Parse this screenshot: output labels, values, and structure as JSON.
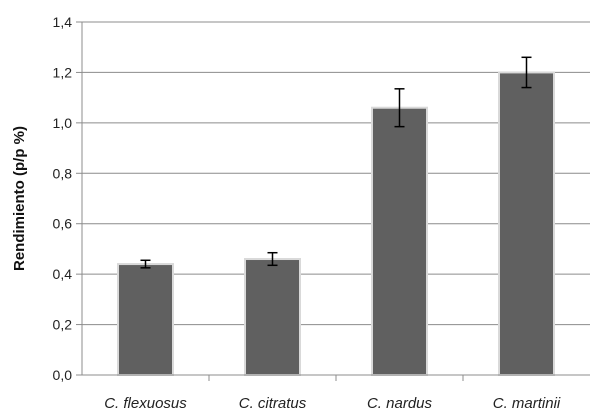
{
  "chart_data": {
    "type": "bar",
    "categories": [
      "C. flexuosus",
      "C. citratus",
      "C. nardus",
      "C. martinii"
    ],
    "values": [
      0.44,
      0.46,
      1.06,
      1.2
    ],
    "error": [
      0.015,
      0.025,
      0.075,
      0.06
    ],
    "ylabel": "Rendimiento (p/p %)",
    "xlabel": "",
    "ylim": [
      0,
      1.4
    ],
    "yticks": [
      "0,0",
      "0,2",
      "0,4",
      "0,6",
      "0,8",
      "1,0",
      "1,2",
      "1,4"
    ],
    "grid": true,
    "legend": "none",
    "colors": {
      "bar": "#606060",
      "bar_outline": "#d9d9d9",
      "grid": "#8c8c8c",
      "axis": "#8c8c8c",
      "error_bar": "#000000"
    }
  }
}
